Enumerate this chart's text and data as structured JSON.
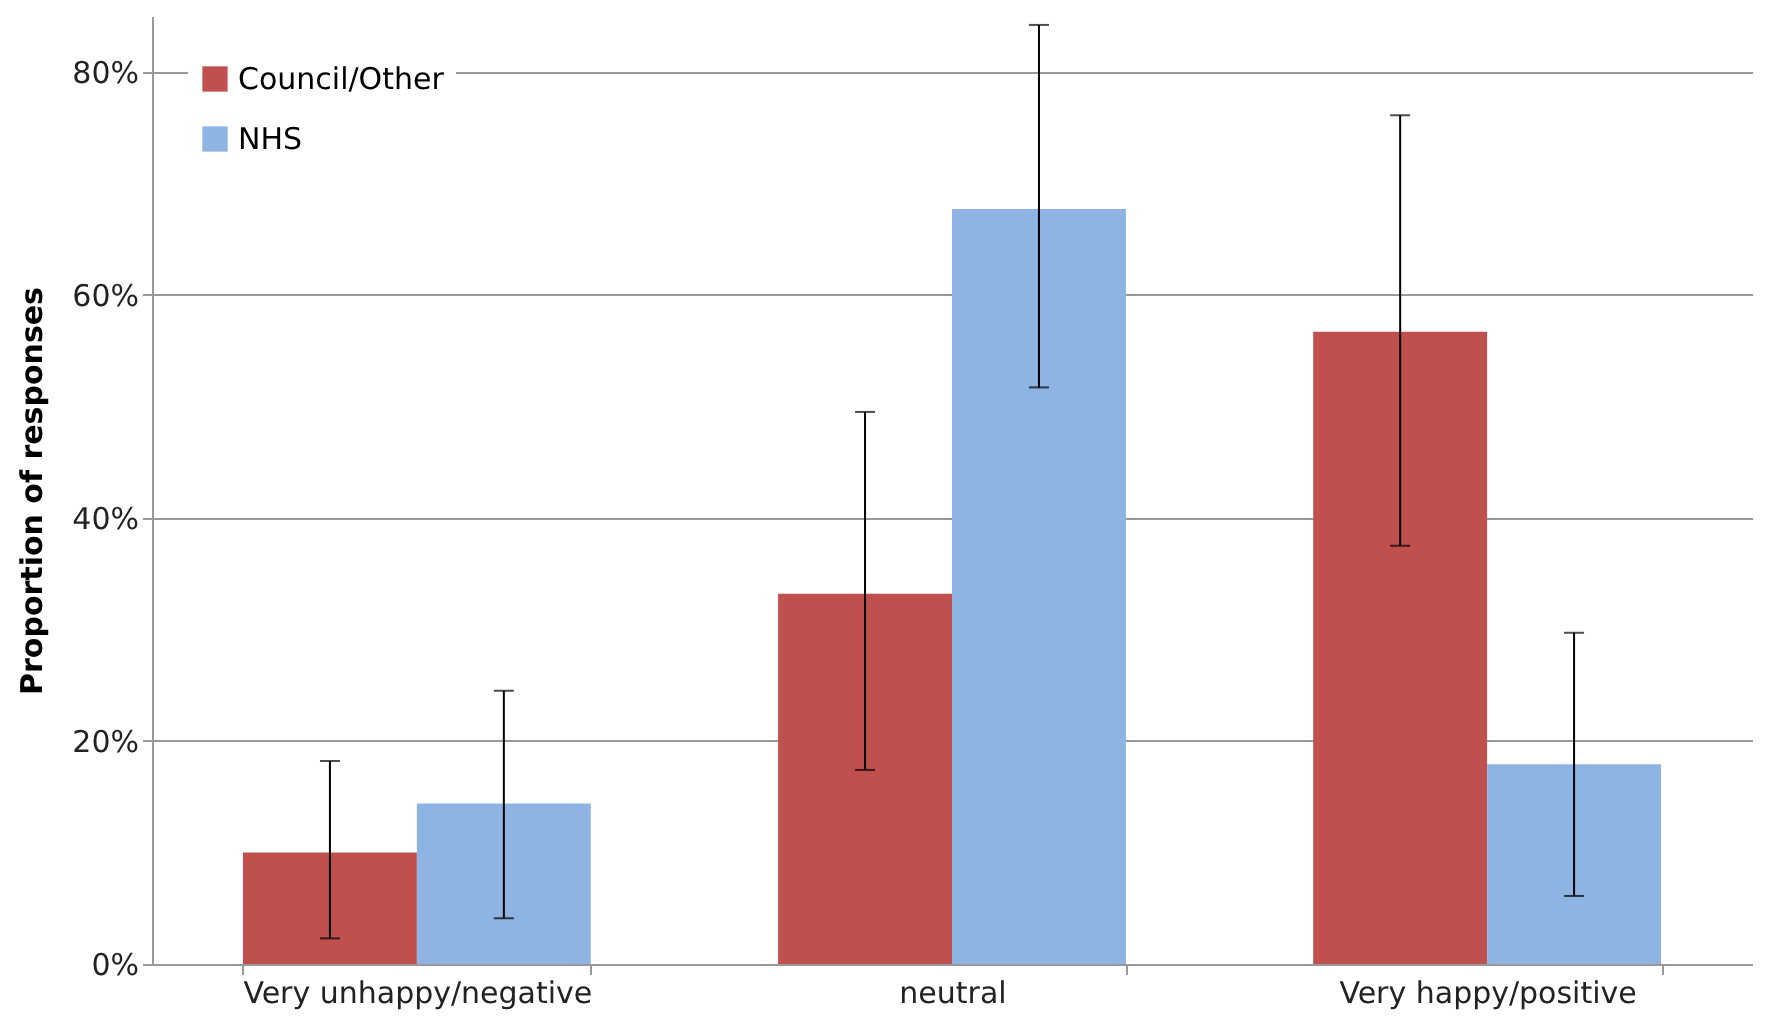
{
  "chart_data": {
    "type": "bar",
    "ylabel": "Proportion of responses",
    "categories": [
      "Very unhappy/negative",
      "neutral",
      "Very happy/positive"
    ],
    "series": [
      {
        "name": "Council/Other",
        "color": "#c0504d",
        "values": [
          10.0,
          33.2,
          56.7
        ],
        "errors": [
          [
            2.3,
            18.2
          ],
          [
            17.4,
            49.5
          ],
          [
            37.5,
            76.1
          ]
        ]
      },
      {
        "name": "NHS",
        "color": "#8eb4e3",
        "values": [
          14.4,
          67.7,
          17.9
        ],
        "errors": [
          [
            4.1,
            24.5
          ],
          [
            51.7,
            84.2
          ],
          [
            6.1,
            29.7
          ]
        ]
      }
    ],
    "ylim": [
      0,
      85
    ],
    "yticks": [
      {
        "value": 0,
        "label": "0%"
      },
      {
        "value": 20,
        "label": "20%"
      },
      {
        "value": 40,
        "label": "40%"
      },
      {
        "value": 60,
        "label": "60%"
      },
      {
        "value": 80,
        "label": "80%"
      }
    ],
    "grid": "y",
    "legend": "top left"
  }
}
